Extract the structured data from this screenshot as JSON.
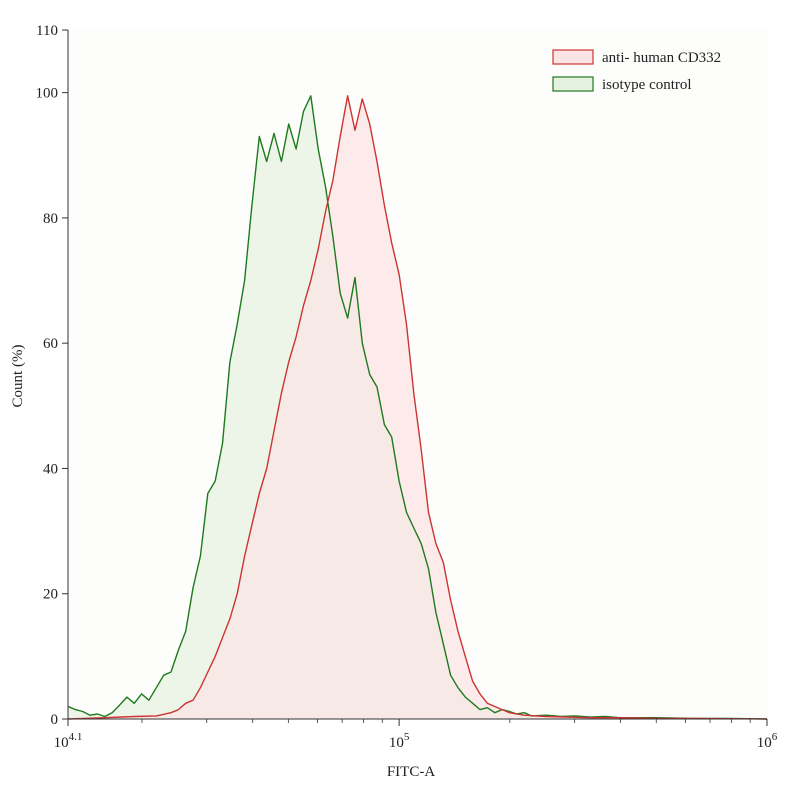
{
  "chart_data": {
    "type": "area",
    "title": "",
    "xlabel": "FITC-A",
    "ylabel": "Count (%)",
    "x_scale": "log10",
    "xlim_exponent": [
      4.1,
      6
    ],
    "ylim": [
      0,
      110
    ],
    "grid": false,
    "legend_position": "top-right",
    "x_ticks": [
      {
        "exp": 4.1,
        "base": "10",
        "sup": "4.1"
      },
      {
        "exp": 5,
        "base": "10",
        "sup": "5"
      },
      {
        "exp": 6,
        "base": "10",
        "sup": "6"
      }
    ],
    "y_ticks": [
      0,
      20,
      40,
      60,
      80,
      100,
      110
    ],
    "series": [
      {
        "name": "isotype control",
        "stroke": "#1e7a1e",
        "fill": "#e6f2e0",
        "points": [
          [
            4.1,
            2.0
          ],
          [
            4.12,
            1.5
          ],
          [
            4.14,
            1.2
          ],
          [
            4.16,
            0.6
          ],
          [
            4.18,
            0.8
          ],
          [
            4.2,
            0.4
          ],
          [
            4.22,
            1.0
          ],
          [
            4.24,
            2.2
          ],
          [
            4.26,
            3.5
          ],
          [
            4.28,
            2.5
          ],
          [
            4.3,
            4.0
          ],
          [
            4.32,
            3.0
          ],
          [
            4.34,
            5.0
          ],
          [
            4.36,
            7.0
          ],
          [
            4.38,
            7.5
          ],
          [
            4.4,
            11.0
          ],
          [
            4.42,
            14.0
          ],
          [
            4.44,
            21.0
          ],
          [
            4.46,
            26.0
          ],
          [
            4.48,
            36.0
          ],
          [
            4.5,
            38.0
          ],
          [
            4.52,
            44.0
          ],
          [
            4.54,
            57.0
          ],
          [
            4.56,
            63.0
          ],
          [
            4.58,
            70.0
          ],
          [
            4.6,
            82.0
          ],
          [
            4.62,
            93.0
          ],
          [
            4.64,
            89.0
          ],
          [
            4.66,
            93.5
          ],
          [
            4.68,
            89.0
          ],
          [
            4.7,
            95.0
          ],
          [
            4.72,
            91.0
          ],
          [
            4.74,
            97.0
          ],
          [
            4.76,
            99.5
          ],
          [
            4.78,
            91.0
          ],
          [
            4.8,
            85.0
          ],
          [
            4.82,
            77.0
          ],
          [
            4.84,
            68.0
          ],
          [
            4.86,
            64.0
          ],
          [
            4.88,
            70.5
          ],
          [
            4.9,
            60.0
          ],
          [
            4.92,
            55.0
          ],
          [
            4.94,
            53.0
          ],
          [
            4.96,
            47.0
          ],
          [
            4.98,
            45.0
          ],
          [
            5.0,
            38.0
          ],
          [
            5.02,
            33.0
          ],
          [
            5.04,
            30.5
          ],
          [
            5.06,
            28.0
          ],
          [
            5.08,
            24.0
          ],
          [
            5.1,
            17.0
          ],
          [
            5.12,
            12.0
          ],
          [
            5.14,
            7.0
          ],
          [
            5.16,
            5.0
          ],
          [
            5.18,
            3.5
          ],
          [
            5.2,
            2.5
          ],
          [
            5.22,
            1.5
          ],
          [
            5.24,
            1.8
          ],
          [
            5.26,
            1.0
          ],
          [
            5.28,
            1.5
          ],
          [
            5.3,
            1.2
          ],
          [
            5.32,
            0.8
          ],
          [
            5.34,
            1.0
          ],
          [
            5.36,
            0.5
          ],
          [
            5.4,
            0.6
          ],
          [
            5.44,
            0.4
          ],
          [
            5.48,
            0.5
          ],
          [
            5.52,
            0.3
          ],
          [
            5.56,
            0.4
          ],
          [
            5.6,
            0.2
          ],
          [
            5.7,
            0.2
          ],
          [
            5.8,
            0.1
          ],
          [
            5.9,
            0.1
          ],
          [
            6.0,
            0.0
          ]
        ]
      },
      {
        "name": "anti- human CD332",
        "stroke": "#cc3333",
        "fill": "#fbe4e4",
        "points": [
          [
            4.1,
            0.0
          ],
          [
            4.2,
            0.2
          ],
          [
            4.28,
            0.4
          ],
          [
            4.34,
            0.5
          ],
          [
            4.38,
            1.0
          ],
          [
            4.4,
            1.5
          ],
          [
            4.42,
            2.5
          ],
          [
            4.44,
            3.0
          ],
          [
            4.46,
            5.0
          ],
          [
            4.48,
            7.5
          ],
          [
            4.5,
            10.0
          ],
          [
            4.52,
            13.0
          ],
          [
            4.54,
            16.0
          ],
          [
            4.56,
            20.0
          ],
          [
            4.58,
            26.0
          ],
          [
            4.6,
            31.0
          ],
          [
            4.62,
            36.0
          ],
          [
            4.64,
            40.0
          ],
          [
            4.66,
            46.0
          ],
          [
            4.68,
            52.0
          ],
          [
            4.7,
            57.0
          ],
          [
            4.72,
            61.0
          ],
          [
            4.74,
            66.0
          ],
          [
            4.76,
            70.0
          ],
          [
            4.78,
            75.0
          ],
          [
            4.8,
            81.0
          ],
          [
            4.82,
            86.0
          ],
          [
            4.84,
            93.0
          ],
          [
            4.86,
            99.5
          ],
          [
            4.88,
            94.0
          ],
          [
            4.9,
            99.0
          ],
          [
            4.92,
            95.0
          ],
          [
            4.94,
            89.0
          ],
          [
            4.96,
            82.0
          ],
          [
            4.98,
            76.0
          ],
          [
            5.0,
            71.0
          ],
          [
            5.02,
            63.0
          ],
          [
            5.04,
            52.0
          ],
          [
            5.06,
            43.0
          ],
          [
            5.08,
            33.0
          ],
          [
            5.1,
            28.0
          ],
          [
            5.12,
            25.0
          ],
          [
            5.14,
            19.0
          ],
          [
            5.16,
            14.0
          ],
          [
            5.18,
            10.0
          ],
          [
            5.2,
            6.0
          ],
          [
            5.22,
            4.0
          ],
          [
            5.24,
            2.5
          ],
          [
            5.26,
            2.0
          ],
          [
            5.28,
            1.5
          ],
          [
            5.3,
            1.0
          ],
          [
            5.34,
            0.6
          ],
          [
            5.4,
            0.4
          ],
          [
            5.46,
            0.3
          ],
          [
            5.52,
            0.2
          ],
          [
            5.6,
            0.2
          ],
          [
            5.7,
            0.1
          ],
          [
            5.8,
            0.1
          ],
          [
            6.0,
            0.0
          ]
        ]
      }
    ]
  }
}
